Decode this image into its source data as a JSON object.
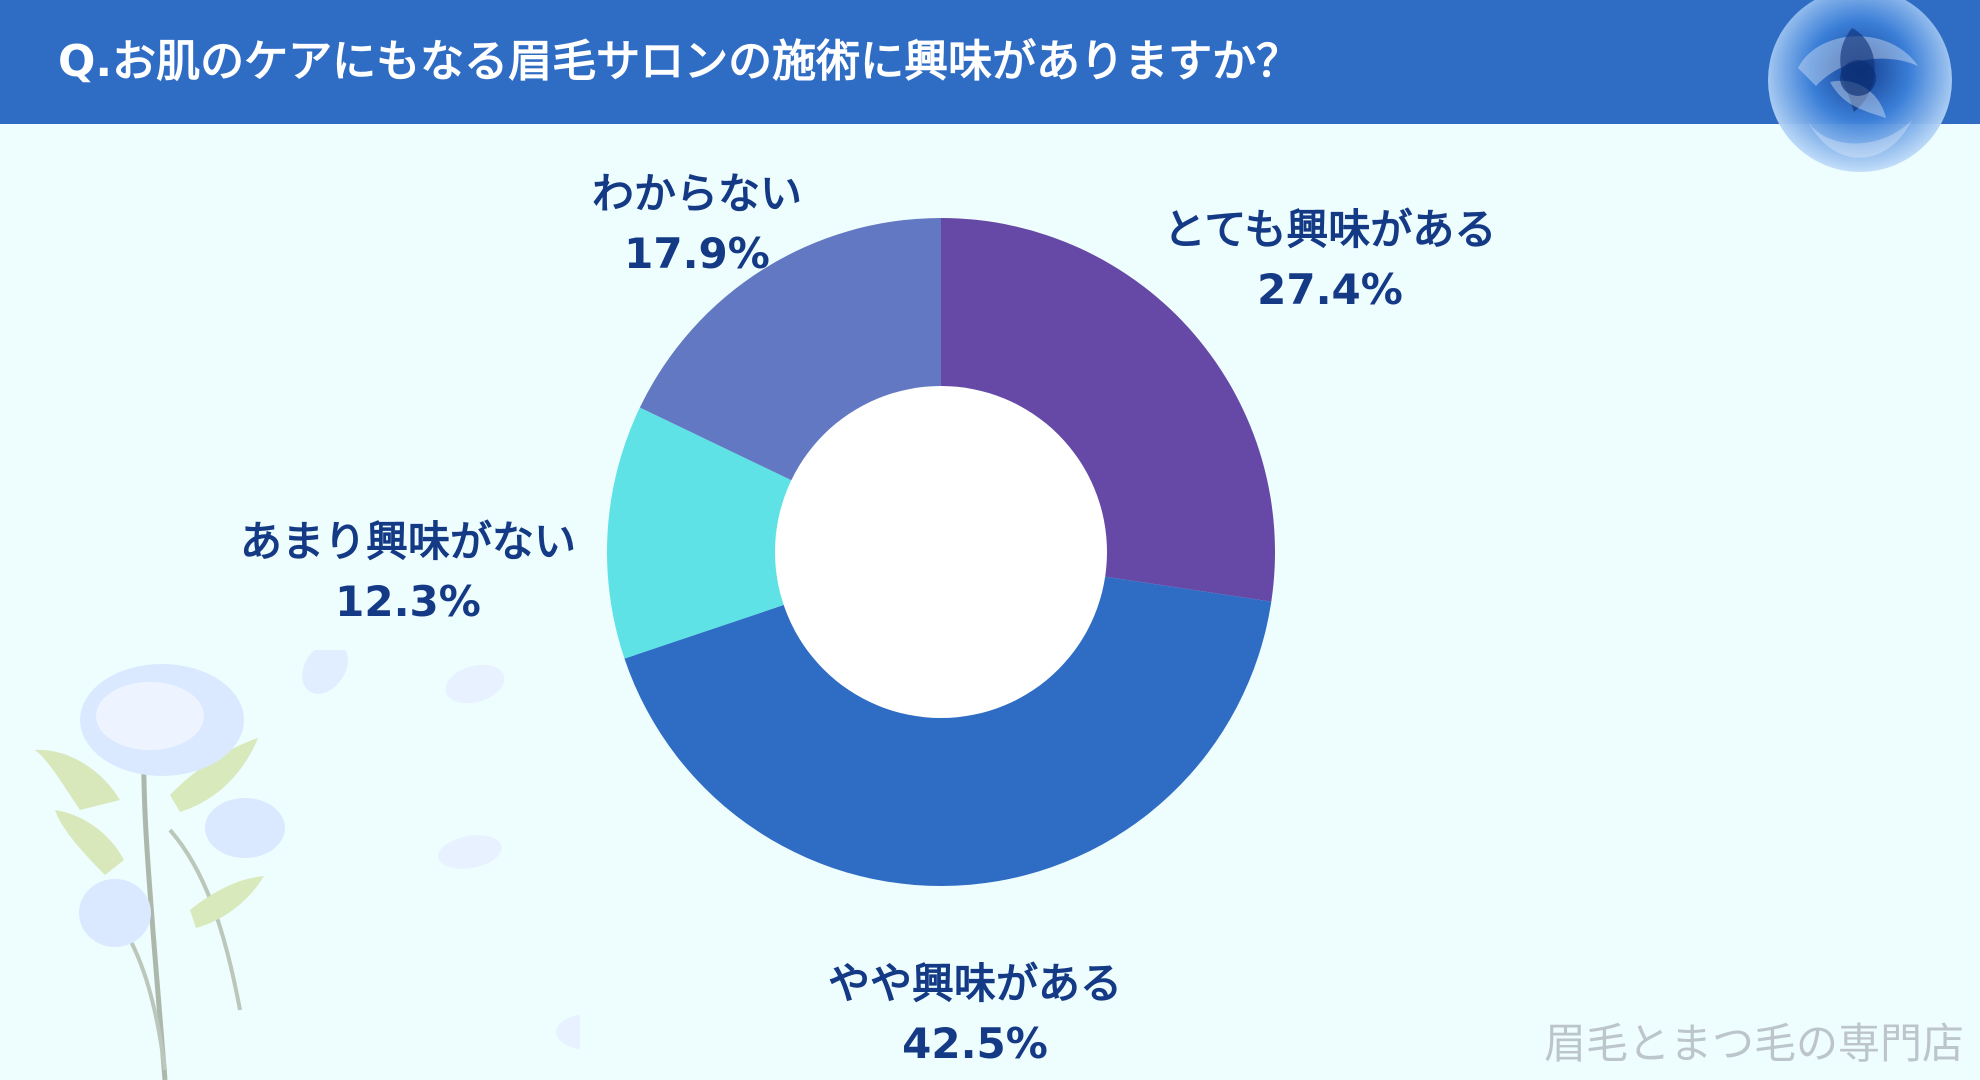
{
  "header": {
    "title": "Q.お肌のケアにもなる眉毛サロンの施術に興味がありますか？"
  },
  "watermark": {
    "text": "眉毛とまつ毛の専門店"
  },
  "colors": {
    "header_bg": "#2f6cc4",
    "background": "#eefdfd",
    "label_text": "#143a86",
    "segment_very_interested": "#6648a6",
    "segment_somewhat_interested": "#2f6cc4",
    "segment_not_very_interested": "#5ee2e6",
    "segment_unknown": "#6378c2"
  },
  "icons": {
    "top_right": "blue-rose-icon",
    "bottom_left": "blue-rose-branch-icon"
  },
  "chart_data": {
    "type": "pie",
    "style": "donut",
    "title": "Q.お肌のケアにもなる眉毛サロンの施術に興味がありますか？",
    "start_angle": "top",
    "direction": "clockwise",
    "categories": [
      "とても興味がある",
      "やや興味がある",
      "あまり興味がない",
      "わからない"
    ],
    "values": [
      27.4,
      42.5,
      12.3,
      17.9
    ],
    "labels": [
      {
        "name": "とても興味がある",
        "value_text": "27.4%"
      },
      {
        "name": "やや興味がある",
        "value_text": "42.5%"
      },
      {
        "name": "あまり興味がない",
        "value_text": "12.3%"
      },
      {
        "name": "わからない",
        "value_text": "17.9%"
      }
    ],
    "colors": [
      "#6648a6",
      "#2f6cc4",
      "#5ee2e6",
      "#6378c2"
    ],
    "legend": "none"
  }
}
